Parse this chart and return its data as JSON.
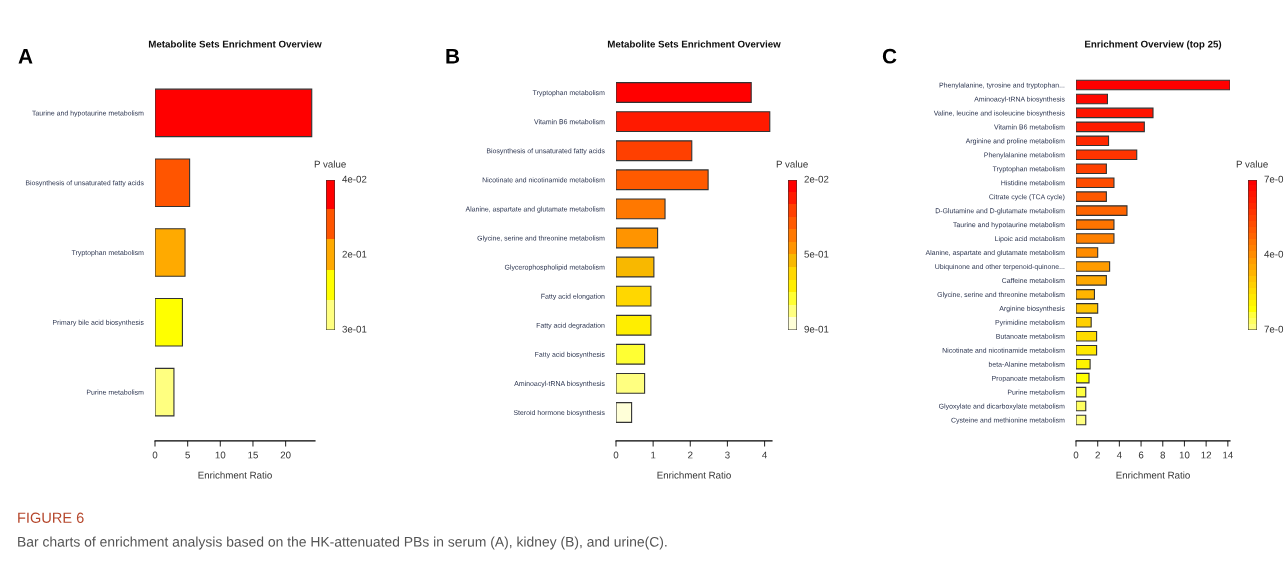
{
  "chart_data": [
    {
      "type": "bar",
      "orientation": "horizontal",
      "title": "Metabolite Sets Enrichment Overview",
      "xlabel": "Enrichment Ratio",
      "legend_title": "P value",
      "categories": [
        "Taurine and hypotaurine metabolism",
        "Biosynthesis of unsaturated fatty acids",
        "Tryptophan metabolism",
        "Primary bile acid biosynthesis",
        "Purine metabolism"
      ],
      "values": [
        24.0,
        5.3,
        4.6,
        4.2,
        2.9
      ],
      "colors": [
        "#ff0000",
        "#ff5500",
        "#ffaa00",
        "#ffff00",
        "#ffff80"
      ],
      "xlim": [
        0,
        24.5
      ],
      "xticks": [
        0,
        5,
        10,
        15,
        20
      ],
      "grid": false,
      "annotations": [
        "A",
        "4e-02",
        "2e-01",
        "3e-01",
        "FIGURE 6",
        "Bar charts of enrichment analysis based on the HK-attenuated PBs in serum (A), kidney (B), and urine(C)."
      ]
    },
    {
      "type": "bar",
      "orientation": "horizontal",
      "title": "Metabolite Sets Enrichment Overview",
      "xlabel": "Enrichment Ratio",
      "legend_title": "P value",
      "categories": [
        "Tryptophan metabolism",
        "Vitamin B6 metabolism",
        "Biosynthesis of unsaturated fatty acids",
        "Nicotinate and nicotinamide metabolism",
        "Alanine, aspartate and glutamate metabolism",
        "Glycine, serine and threonine metabolism",
        "Glycerophospholipid metabolism",
        "Fatty acid elongation",
        "Fatty acid degradation",
        "Fatty acid biosynthesis",
        "Aminoacyl-tRNA biosynthesis",
        "Steroid hormone biosynthesis"
      ],
      "values": [
        3.64,
        4.14,
        2.04,
        2.48,
        1.32,
        1.12,
        1.02,
        0.94,
        0.94,
        0.77,
        0.77,
        0.42
      ],
      "colors": [
        "#ff0000",
        "#ff1a00",
        "#ff4000",
        "#ff5a00",
        "#ff7800",
        "#ff9400",
        "#f8b800",
        "#ffd700",
        "#ffee00",
        "#ffff33",
        "#ffff80",
        "#ffffd8"
      ],
      "xlim": [
        0,
        4.2
      ],
      "xticks": [
        0,
        1,
        2,
        3,
        4
      ],
      "grid": false,
      "annotations": [
        "B",
        "2e-02",
        "5e-01",
        "9e-01"
      ]
    },
    {
      "type": "bar",
      "orientation": "horizontal",
      "title": "Enrichment Overview (top 25)",
      "xlabel": "Enrichment Ratio",
      "legend_title": "P value",
      "categories": [
        "Phenylalanine, tyrosine and tryptophan...",
        "Aminoacyl-tRNA biosynthesis",
        "Valine, leucine and isoleucine biosynthesis",
        "Vitamin B6 metabolism",
        "Arginine and proline metabolism",
        "Phenylalanine metabolism",
        "Tryptophan metabolism",
        "Histidine metabolism",
        "Citrate cycle (TCA cycle)",
        "D-Glutamine and D-glutamate metabolism",
        "Taurine and hypotaurine metabolism",
        "Lipoic acid metabolism",
        "Alanine, aspartate and glutamate metabolism",
        "Ubiquinone and other terpenoid-quinone...",
        "Caffeine metabolism",
        "Glycine, serine and threonine metabolism",
        "Arginine biosynthesis",
        "Pyrimidine metabolism",
        "Butanoate metabolism",
        "Nicotinate and nicotinamide metabolism",
        "beta-Alanine metabolism",
        "Propanoate metabolism",
        "Purine metabolism",
        "Glyoxylate and dicarboxylate metabolism",
        "Cysteine and methionine metabolism"
      ],
      "values": [
        14.2,
        2.9,
        7.1,
        6.3,
        3.0,
        5.6,
        2.8,
        3.5,
        2.8,
        4.7,
        3.5,
        3.5,
        2.0,
        3.1,
        2.8,
        1.7,
        2.0,
        1.4,
        1.9,
        1.9,
        1.3,
        1.2,
        0.9,
        0.9,
        0.9
      ],
      "colors": [
        "#ff0000",
        "#ff0800",
        "#ff1400",
        "#ff1c00",
        "#ff2800",
        "#ff3400",
        "#ff4000",
        "#ff4c00",
        "#ff5800",
        "#ff6400",
        "#ff7400",
        "#ff8000",
        "#ff8c00",
        "#ff9c00",
        "#ffa800",
        "#ffb400",
        "#ffc400",
        "#ffd000",
        "#ffdc00",
        "#ffe800",
        "#fff400",
        "#ffff00",
        "#ffff40",
        "#ffff60",
        "#ffff80"
      ],
      "xlim": [
        0,
        14.2
      ],
      "xticks": [
        0,
        2,
        4,
        6,
        8,
        10,
        12,
        14
      ],
      "grid": false,
      "annotations": [
        "C",
        "7e-0",
        "4e-0",
        "7e-0"
      ]
    }
  ]
}
